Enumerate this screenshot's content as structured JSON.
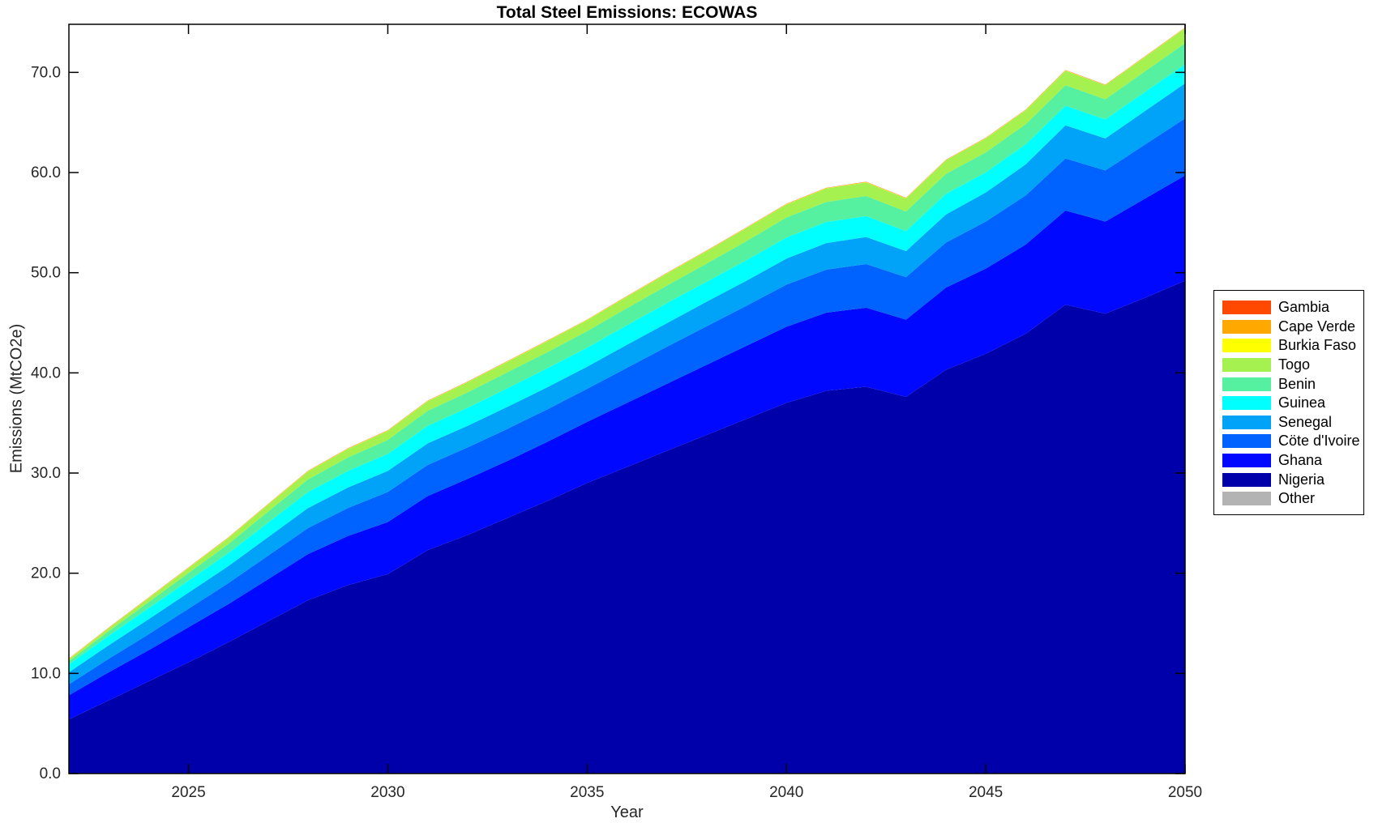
{
  "figure": {
    "title": "Total Steel Emissions: ECOWAS"
  },
  "chart_data": {
    "type": "area",
    "stacked": true,
    "title": "Total Steel Emissions: ECOWAS",
    "xlabel": "Year",
    "ylabel": "Emissions (MtCO2e)",
    "grid": false,
    "legend_position": "right-outside",
    "xlim": [
      2022,
      2050
    ],
    "ylim": [
      0,
      74.8
    ],
    "x_ticks": [
      2025,
      2030,
      2035,
      2040,
      2045,
      2050
    ],
    "x_tick_labels": [
      "2025",
      "2030",
      "2035",
      "2040",
      "2045",
      "2050"
    ],
    "y_ticks": [
      0,
      10,
      20,
      30,
      40,
      50,
      60,
      70
    ],
    "y_tick_labels": [
      "0.0",
      "10.0",
      "20.0",
      "30.0",
      "40.0",
      "50.0",
      "60.0",
      "70.0"
    ],
    "x": [
      2022,
      2023,
      2024,
      2025,
      2026,
      2027,
      2028,
      2029,
      2030,
      2031,
      2032,
      2033,
      2034,
      2035,
      2036,
      2037,
      2038,
      2039,
      2040,
      2041,
      2042,
      2043,
      2044,
      2045,
      2046,
      2047,
      2048,
      2049,
      2050
    ],
    "series_order_note": "bottom of stack first",
    "series": [
      {
        "name": "Other",
        "color": "#b3b3b3",
        "values": [
          0.01,
          0.01,
          0.01,
          0.01,
          0.01,
          0.01,
          0.01,
          0.01,
          0.01,
          0.01,
          0.01,
          0.01,
          0.01,
          0.01,
          0.01,
          0.01,
          0.01,
          0.01,
          0.01,
          0.01,
          0.01,
          0.01,
          0.01,
          0.01,
          0.01,
          0.01,
          0.01,
          0.01,
          0.01
        ]
      },
      {
        "name": "Nigeria",
        "color": "#0000aa",
        "values": [
          5.4,
          7.3,
          9.2,
          11.1,
          13.1,
          15.2,
          17.3,
          18.8,
          19.9,
          22.3,
          23.8,
          25.5,
          27.2,
          29.0,
          30.6,
          32.2,
          33.8,
          35.4,
          37.0,
          38.2,
          38.6,
          37.6,
          40.3,
          41.9,
          43.9,
          46.8,
          45.9,
          47.5,
          49.2
        ]
      },
      {
        "name": "Ghana",
        "color": "#0008ff",
        "values": [
          2.4,
          2.8,
          3.1,
          3.5,
          3.8,
          4.2,
          4.6,
          4.9,
          5.2,
          5.4,
          5.6,
          5.7,
          5.9,
          6.1,
          6.4,
          6.7,
          7.0,
          7.3,
          7.6,
          7.8,
          7.9,
          7.7,
          8.2,
          8.5,
          8.9,
          9.4,
          9.2,
          9.9,
          10.5
        ]
      },
      {
        "name": "Cöte d'Ivoire",
        "color": "#0063ff",
        "values": [
          1.1,
          1.35,
          1.6,
          1.85,
          2.1,
          2.35,
          2.6,
          2.8,
          3.0,
          3.1,
          3.15,
          3.2,
          3.25,
          3.3,
          3.5,
          3.7,
          3.85,
          4.0,
          4.2,
          4.3,
          4.35,
          4.25,
          4.5,
          4.7,
          4.9,
          5.2,
          5.1,
          5.4,
          5.7
        ]
      },
      {
        "name": "Senegal",
        "color": "#00a3f8",
        "values": [
          1.2,
          1.35,
          1.5,
          1.6,
          1.7,
          1.85,
          2.0,
          2.05,
          2.1,
          2.15,
          2.15,
          2.2,
          2.2,
          2.2,
          2.3,
          2.35,
          2.45,
          2.5,
          2.6,
          2.65,
          2.7,
          2.6,
          2.8,
          2.9,
          3.1,
          3.3,
          3.2,
          3.35,
          3.5
        ]
      },
      {
        "name": "Guinea",
        "color": "#00ffff",
        "values": [
          0.8,
          0.95,
          1.1,
          1.2,
          1.3,
          1.45,
          1.6,
          1.65,
          1.7,
          1.75,
          1.8,
          1.85,
          1.9,
          1.9,
          1.95,
          2.0,
          2.0,
          2.05,
          2.1,
          2.1,
          2.1,
          2.0,
          2.05,
          2.0,
          2.0,
          1.95,
          1.9,
          1.9,
          1.9
        ]
      },
      {
        "name": "Benin",
        "color": "#55f0a0",
        "values": [
          0.3,
          0.45,
          0.6,
          0.75,
          0.9,
          1.1,
          1.25,
          1.35,
          1.4,
          1.5,
          1.55,
          1.6,
          1.6,
          1.65,
          1.7,
          1.75,
          1.8,
          1.9,
          2.0,
          2.0,
          2.0,
          1.95,
          2.0,
          2.0,
          2.0,
          2.05,
          2.0,
          2.05,
          2.1
        ]
      },
      {
        "name": "Togo",
        "color": "#a5f14f",
        "values": [
          0.2,
          0.3,
          0.4,
          0.5,
          0.6,
          0.7,
          0.8,
          0.85,
          0.9,
          0.95,
          1.0,
          1.05,
          1.1,
          1.1,
          1.15,
          1.2,
          1.25,
          1.3,
          1.3,
          1.35,
          1.35,
          1.3,
          1.35,
          1.4,
          1.4,
          1.45,
          1.4,
          1.45,
          1.5
        ]
      },
      {
        "name": "Burkia Faso",
        "color": "#ffff00",
        "values": [
          0.03,
          0.03,
          0.03,
          0.03,
          0.03,
          0.03,
          0.03,
          0.03,
          0.03,
          0.03,
          0.03,
          0.03,
          0.03,
          0.03,
          0.03,
          0.03,
          0.03,
          0.03,
          0.03,
          0.03,
          0.03,
          0.03,
          0.03,
          0.03,
          0.03,
          0.03,
          0.03,
          0.03,
          0.03
        ]
      },
      {
        "name": "Cape Verde",
        "color": "#ffa800",
        "values": [
          0.02,
          0.02,
          0.02,
          0.02,
          0.02,
          0.02,
          0.02,
          0.02,
          0.02,
          0.02,
          0.02,
          0.02,
          0.02,
          0.02,
          0.02,
          0.02,
          0.02,
          0.02,
          0.02,
          0.02,
          0.02,
          0.02,
          0.02,
          0.02,
          0.02,
          0.02,
          0.02,
          0.02,
          0.02
        ]
      },
      {
        "name": "Gambia",
        "color": "#ff4800",
        "values": [
          0.02,
          0.02,
          0.02,
          0.02,
          0.02,
          0.02,
          0.02,
          0.02,
          0.02,
          0.02,
          0.02,
          0.02,
          0.02,
          0.02,
          0.02,
          0.02,
          0.02,
          0.02,
          0.02,
          0.02,
          0.02,
          0.02,
          0.02,
          0.02,
          0.02,
          0.02,
          0.02,
          0.02,
          0.02
        ]
      }
    ],
    "legend_labels_top_to_bottom": [
      "Gambia",
      "Cape Verde",
      "Burkia Faso",
      "Togo",
      "Benin",
      "Guinea",
      "Senegal",
      "Cöte d'Ivoire",
      "Ghana",
      "Nigeria",
      "Other"
    ]
  },
  "style": {
    "axis_color": "#000000",
    "tick_label_color": "#262626",
    "plot_background": "#ffffff"
  }
}
